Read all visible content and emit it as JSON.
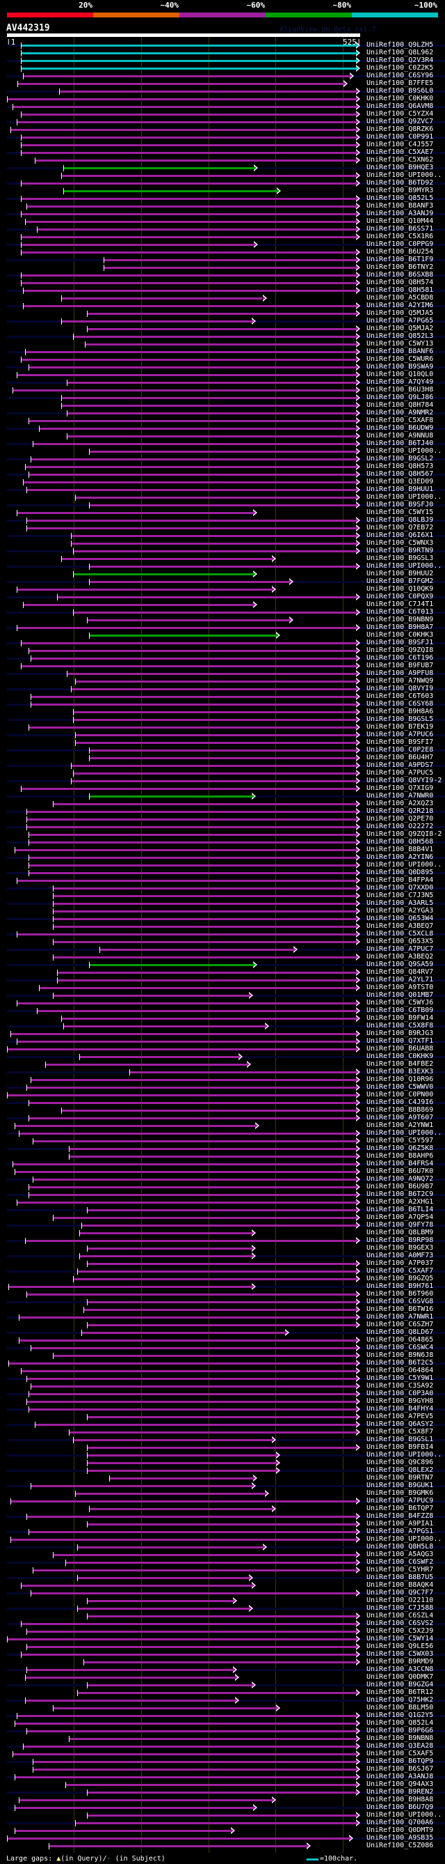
{
  "legend": {
    "labels": [
      "20%",
      "~40%",
      "~60%",
      "~80%",
      "~100%"
    ],
    "colors": [
      "#f0001c",
      "#e06000",
      "#a020a0",
      "#00a000",
      "#00c0c0"
    ]
  },
  "header": {
    "query_name": "AV442319",
    "version": "AlignView.pm Beta rel.7",
    "scale_start": "|1",
    "scale_end": "525|"
  },
  "query_length": 525,
  "color_codes": {
    "c": "#00c0c0",
    "g": "#00a000",
    "m": "#a020a0"
  },
  "hits": [
    [
      "UniRef100_Q9LZH5",
      22,
      525,
      "c"
    ],
    [
      "UniRef100_Q8L962",
      22,
      525,
      "c"
    ],
    [
      "UniRef100_Q2V3R4",
      22,
      525,
      "c"
    ],
    [
      "UniRef100_C0Z2K5",
      22,
      525,
      "c"
    ],
    [
      "UniRef100_C6SY96",
      25,
      516,
      "m"
    ],
    [
      "UniRef100_B7FFE5",
      16,
      506,
      "m"
    ],
    [
      "UniRef100_B9S6L0",
      78,
      525,
      "m"
    ],
    [
      "UniRef100_C0KHK0",
      1,
      525,
      "m"
    ],
    [
      "UniRef100_Q6AVM8",
      9,
      525,
      "m"
    ],
    [
      "UniRef100_C5YZX4",
      22,
      525,
      "m"
    ],
    [
      "UniRef100_Q9ZVC7",
      15,
      525,
      "m"
    ],
    [
      "UniRef100_Q8RZK6",
      6,
      525,
      "m"
    ],
    [
      "UniRef100_C0P991",
      22,
      525,
      "m"
    ],
    [
      "UniRef100_C4J557",
      22,
      525,
      "m"
    ],
    [
      "UniRef100_C5XAE7",
      22,
      525,
      "m"
    ],
    [
      "UniRef100_C5XN62",
      42,
      525,
      "m"
    ],
    [
      "UniRef100_B9HQE3",
      85,
      373,
      "g"
    ],
    [
      "UniRef100_UPI000..",
      82,
      525,
      "m"
    ],
    [
      "UniRef100_B6TD92",
      22,
      525,
      "m"
    ],
    [
      "UniRef100_B9MYR3",
      85,
      407,
      "g"
    ],
    [
      "UniRef100_Q852L5",
      22,
      525,
      "m"
    ],
    [
      "UniRef100_B8ANF3",
      30,
      525,
      "m"
    ],
    [
      "UniRef100_A3ANJ9",
      22,
      525,
      "m"
    ],
    [
      "UniRef100_Q10M44",
      28,
      525,
      "m"
    ],
    [
      "UniRef100_B6SS71",
      45,
      525,
      "m"
    ],
    [
      "UniRef100_C5X1R6",
      22,
      525,
      "m"
    ],
    [
      "UniRef100_C0PPG9",
      22,
      373,
      "m"
    ],
    [
      "UniRef100_B6U254",
      22,
      525,
      "m"
    ],
    [
      "UniRef100_B6T1F9",
      145,
      525,
      "m"
    ],
    [
      "UniRef100_B6TNY2",
      145,
      525,
      "m"
    ],
    [
      "UniRef100_B6SXB8",
      22,
      525,
      "m"
    ],
    [
      "UniRef100_Q8H574",
      22,
      525,
      "m"
    ],
    [
      "UniRef100_Q8H581",
      25,
      525,
      "m"
    ],
    [
      "UniRef100_A5CBD8",
      82,
      386,
      "m"
    ],
    [
      "UniRef100_A2YIM6",
      25,
      525,
      "m"
    ],
    [
      "UniRef100_Q5MJA5",
      120,
      525,
      "m"
    ],
    [
      "UniRef100_A7PG65",
      82,
      370,
      "m"
    ],
    [
      "UniRef100_Q5MJA2",
      120,
      525,
      "m"
    ],
    [
      "UniRef100_Q852L3",
      99,
      525,
      "m"
    ],
    [
      "UniRef100_C5WY13",
      117,
      525,
      "m"
    ],
    [
      "UniRef100_B8ANF6",
      28,
      525,
      "m"
    ],
    [
      "UniRef100_C5WUR6",
      22,
      525,
      "m"
    ],
    [
      "UniRef100_B9SWA9",
      33,
      525,
      "m"
    ],
    [
      "UniRef100_Q10QL0",
      15,
      525,
      "m"
    ],
    [
      "UniRef100_A7QY49",
      90,
      525,
      "m"
    ],
    [
      "UniRef100_B6U3H8",
      9,
      525,
      "m"
    ],
    [
      "UniRef100_Q9LJ86",
      82,
      525,
      "m"
    ],
    [
      "UniRef100_Q8H784",
      82,
      525,
      "m"
    ],
    [
      "UniRef100_A9NMR2",
      90,
      525,
      "m"
    ],
    [
      "UniRef100_C5XAF8",
      33,
      525,
      "m"
    ],
    [
      "UniRef100_B6UDW9",
      49,
      525,
      "m"
    ],
    [
      "UniRef100_A9NNU8",
      90,
      525,
      "m"
    ],
    [
      "UniRef100_B6TJ40",
      39,
      525,
      "m"
    ],
    [
      "UniRef100_UPI000..",
      123,
      525,
      "m"
    ],
    [
      "UniRef100_B9GSL2",
      36,
      525,
      "m"
    ],
    [
      "UniRef100_Q8H573",
      28,
      525,
      "m"
    ],
    [
      "UniRef100_Q8H567",
      33,
      525,
      "m"
    ],
    [
      "UniRef100_Q3ED09",
      25,
      525,
      "m"
    ],
    [
      "UniRef100_B9HUU1",
      30,
      525,
      "m"
    ],
    [
      "UniRef100_UPI000..",
      102,
      525,
      "m"
    ],
    [
      "UniRef100_B9SFJ0",
      123,
      525,
      "m"
    ],
    [
      "UniRef100_C5WY15",
      15,
      372,
      "m"
    ],
    [
      "UniRef100_Q8LBJ9",
      30,
      525,
      "m"
    ],
    [
      "UniRef100_Q7EB72",
      30,
      525,
      "m"
    ],
    [
      "UniRef100_Q6I6X1",
      96,
      525,
      "m"
    ],
    [
      "UniRef100_C5WNX3",
      96,
      525,
      "m"
    ],
    [
      "UniRef100_B9RTN9",
      99,
      525,
      "m"
    ],
    [
      "UniRef100_B9GSL3",
      82,
      400,
      "m"
    ],
    [
      "UniRef100_UPI000..",
      123,
      525,
      "m"
    ],
    [
      "UniRef100_B9HUU2",
      99,
      372,
      "g"
    ],
    [
      "UniRef100_B7FGM2",
      123,
      426,
      "m"
    ],
    [
      "UniRef100_Q10QK9",
      15,
      400,
      "m"
    ],
    [
      "UniRef100_C0PQX9",
      75,
      525,
      "m"
    ],
    [
      "UniRef100_C7J4T1",
      25,
      372,
      "m"
    ],
    [
      "UniRef100_C6T013",
      99,
      525,
      "m"
    ],
    [
      "UniRef100_B9NBN9",
      120,
      426,
      "m"
    ],
    [
      "UniRef100_B9H8A7",
      15,
      525,
      "m"
    ],
    [
      "UniRef100_C0KHK3",
      123,
      406,
      "g"
    ],
    [
      "UniRef100_B9SFJ1",
      22,
      525,
      "m"
    ],
    [
      "UniRef100_Q9ZQI8",
      33,
      525,
      "m"
    ],
    [
      "UniRef100_C6T196",
      36,
      525,
      "m"
    ],
    [
      "UniRef100_B9FUB7",
      22,
      525,
      "m"
    ],
    [
      "UniRef100_A9PFU8",
      90,
      525,
      "m"
    ],
    [
      "UniRef100_A7NWQ9",
      102,
      525,
      "m"
    ],
    [
      "UniRef100_Q8VYI9",
      96,
      525,
      "m"
    ],
    [
      "UniRef100_C6T603",
      36,
      525,
      "m"
    ],
    [
      "UniRef100_C6SY68",
      36,
      525,
      "m"
    ],
    [
      "UniRef100_B9H8A6",
      99,
      525,
      "m"
    ],
    [
      "UniRef100_B9GSL5",
      99,
      525,
      "m"
    ],
    [
      "UniRef100_B7EK19",
      33,
      525,
      "m"
    ],
    [
      "UniRef100_A7PUC6",
      102,
      525,
      "m"
    ],
    [
      "UniRef100_B9SFI7",
      102,
      525,
      "m"
    ],
    [
      "UniRef100_C0P2E8",
      123,
      525,
      "m"
    ],
    [
      "UniRef100_B6U4H7",
      123,
      525,
      "m"
    ],
    [
      "UniRef100_A9PDS7",
      96,
      525,
      "m"
    ],
    [
      "UniRef100_A7PUC5",
      99,
      525,
      "m"
    ],
    [
      "UniRef100_Q8VYI9-2",
      96,
      525,
      "m"
    ],
    [
      "UniRef100_Q7XIG9",
      22,
      525,
      "m"
    ],
    [
      "UniRef100_A7NWR0",
      123,
      370,
      "g"
    ],
    [
      "UniRef100_A2XQZ3",
      69,
      525,
      "m"
    ],
    [
      "UniRef100_Q2R218",
      30,
      525,
      "m"
    ],
    [
      "UniRef100_Q2PE70",
      30,
      525,
      "m"
    ],
    [
      "UniRef100_O22272",
      30,
      525,
      "m"
    ],
    [
      "UniRef100_Q9ZQI8-2",
      33,
      525,
      "m"
    ],
    [
      "UniRef100_Q8H568",
      33,
      525,
      "m"
    ],
    [
      "UniRef100_B8B4V1",
      12,
      525,
      "m"
    ],
    [
      "UniRef100_A2YIN6",
      33,
      525,
      "m"
    ],
    [
      "UniRef100_UPI000..",
      33,
      525,
      "m"
    ],
    [
      "UniRef100_Q0D895",
      33,
      525,
      "m"
    ],
    [
      "UniRef100_B4FPA4",
      15,
      525,
      "m"
    ],
    [
      "UniRef100_Q7XXD0",
      69,
      525,
      "m"
    ],
    [
      "UniRef100_C7J3N5",
      69,
      525,
      "m"
    ],
    [
      "UniRef100_A3ARL5",
      69,
      525,
      "m"
    ],
    [
      "UniRef100_A2YGA3",
      69,
      525,
      "m"
    ],
    [
      "UniRef100_Q653W4",
      69,
      525,
      "m"
    ],
    [
      "UniRef100_A3BEQ7",
      69,
      525,
      "m"
    ],
    [
      "UniRef100_C5XCL8",
      15,
      525,
      "m"
    ],
    [
      "UniRef100_Q653X5",
      69,
      525,
      "m"
    ],
    [
      "UniRef100_A7PUC7",
      138,
      432,
      "m"
    ],
    [
      "UniRef100_A3BEQ2",
      69,
      525,
      "m"
    ],
    [
      "UniRef100_Q9SA59",
      123,
      372,
      "g"
    ],
    [
      "UniRef100_Q84RV7",
      75,
      525,
      "m"
    ],
    [
      "UniRef100_A2YL71",
      75,
      525,
      "m"
    ],
    [
      "UniRef100_A9TST0",
      49,
      525,
      "m"
    ],
    [
      "UniRef100_Q01MB7",
      69,
      366,
      "m"
    ],
    [
      "UniRef100_C5WYJ6",
      15,
      525,
      "m"
    ],
    [
      "UniRef100_C6TB09",
      45,
      525,
      "m"
    ],
    [
      "UniRef100_B9FW14",
      82,
      525,
      "m"
    ],
    [
      "UniRef100_C5X8F8",
      85,
      390,
      "m"
    ],
    [
      "UniRef100_B9RJG3",
      6,
      525,
      "m"
    ],
    [
      "UniRef100_Q7XTF1",
      15,
      525,
      "m"
    ],
    [
      "UniRef100_B6UAB8",
      1,
      525,
      "m"
    ],
    [
      "UniRef100_C0KHK9",
      108,
      350,
      "m"
    ],
    [
      "UniRef100_B4FBE2",
      58,
      363,
      "m"
    ],
    [
      "UniRef100_B3EXK3",
      183,
      525,
      "m"
    ],
    [
      "UniRef100_Q10R96",
      36,
      525,
      "m"
    ],
    [
      "UniRef100_C5WWV0",
      30,
      525,
      "m"
    ],
    [
      "UniRef100_C0PN00",
      1,
      525,
      "m"
    ],
    [
      "UniRef100_C4J9I6",
      33,
      525,
      "m"
    ],
    [
      "UniRef100_B8B869",
      82,
      525,
      "m"
    ],
    [
      "UniRef100_A9T607",
      33,
      525,
      "m"
    ],
    [
      "UniRef100_A2YNW1",
      12,
      375,
      "m"
    ],
    [
      "UniRef100_UPI000..",
      19,
      525,
      "m"
    ],
    [
      "UniRef100_C5Y597",
      39,
      525,
      "m"
    ],
    [
      "UniRef100_Q6Z5K8",
      93,
      525,
      "m"
    ],
    [
      "UniRef100_B8AHP6",
      93,
      525,
      "m"
    ],
    [
      "UniRef100_B4FRS4",
      9,
      525,
      "m"
    ],
    [
      "UniRef100_B6U7K0",
      12,
      525,
      "m"
    ],
    [
      "UniRef100_A9NQ72",
      39,
      525,
      "m"
    ],
    [
      "UniRef100_B6U9B7",
      33,
      525,
      "m"
    ],
    [
      "UniRef100_B6T2C9",
      33,
      525,
      "m"
    ],
    [
      "UniRef100_A2XHG1",
      15,
      525,
      "m"
    ],
    [
      "UniRef100_B6TLI4",
      120,
      525,
      "m"
    ],
    [
      "UniRef100_A7QP54",
      69,
      525,
      "m"
    ],
    [
      "UniRef100_Q9FY78",
      112,
      525,
      "m"
    ],
    [
      "UniRef100_Q8LBM9",
      108,
      370,
      "m"
    ],
    [
      "UniRef100_B9RP98",
      28,
      525,
      "m"
    ],
    [
      "UniRef100_B9GEX3",
      120,
      370,
      "m"
    ],
    [
      "UniRef100_A0MF73",
      108,
      370,
      "m"
    ],
    [
      "UniRef100_A7P037",
      120,
      525,
      "m"
    ],
    [
      "UniRef100_C5XAF7",
      105,
      525,
      "m"
    ],
    [
      "UniRef100_B9GZQ5",
      99,
      525,
      "m"
    ],
    [
      "UniRef100_B9H761",
      3,
      370,
      "m"
    ],
    [
      "UniRef100_B6T960",
      30,
      525,
      "m"
    ],
    [
      "UniRef100_C6SVG8",
      120,
      525,
      "m"
    ],
    [
      "UniRef100_B6TW16",
      115,
      525,
      "m"
    ],
    [
      "UniRef100_A7NWR1",
      19,
      525,
      "m"
    ],
    [
      "UniRef100_C6SZH7",
      120,
      525,
      "m"
    ],
    [
      "UniRef100_Q8LD67",
      112,
      420,
      "m"
    ],
    [
      "UniRef100_O64865",
      19,
      525,
      "m"
    ],
    [
      "UniRef100_C6SWC4",
      36,
      525,
      "m"
    ],
    [
      "UniRef100_B9N6J8",
      69,
      525,
      "m"
    ],
    [
      "UniRef100_B6T2C5",
      3,
      525,
      "m"
    ],
    [
      "UniRef100_O64864",
      22,
      525,
      "m"
    ],
    [
      "UniRef100_C5Y9W1",
      30,
      525,
      "m"
    ],
    [
      "UniRef100_C3SA92",
      36,
      525,
      "m"
    ],
    [
      "UniRef100_C0P3A0",
      33,
      525,
      "m"
    ],
    [
      "UniRef100_B9GYH8",
      30,
      525,
      "m"
    ],
    [
      "UniRef100_B4FHY4",
      33,
      525,
      "m"
    ],
    [
      "UniRef100_A7PEV5",
      120,
      525,
      "m"
    ],
    [
      "UniRef100_Q6ASY2",
      42,
      525,
      "m"
    ],
    [
      "UniRef100_C5X8F7",
      93,
      525,
      "m"
    ],
    [
      "UniRef100_B9GSL1",
      99,
      400,
      "m"
    ],
    [
      "UniRef100_B9FBI4",
      120,
      525,
      "m"
    ],
    [
      "UniRef100_UPI000..",
      120,
      406,
      "m"
    ],
    [
      "UniRef100_Q9C896",
      120,
      406,
      "m"
    ],
    [
      "UniRef100_Q8LEX2",
      120,
      406,
      "m"
    ],
    [
      "UniRef100_B9RTN7",
      153,
      372,
      "m"
    ],
    [
      "UniRef100_B9GUK1",
      36,
      370,
      "m"
    ],
    [
      "UniRef100_B9GMK6",
      102,
      390,
      "m"
    ],
    [
      "UniRef100_A7PUC9",
      6,
      525,
      "m"
    ],
    [
      "UniRef100_B6TQP7",
      123,
      400,
      "m"
    ],
    [
      "UniRef100_B4FZZ8",
      30,
      525,
      "m"
    ],
    [
      "UniRef100_A9PIA1",
      120,
      525,
      "m"
    ],
    [
      "UniRef100_A7PGS1",
      33,
      525,
      "m"
    ],
    [
      "UniRef100_UPI000..",
      6,
      525,
      "m"
    ],
    [
      "UniRef100_Q8H5L8",
      105,
      386,
      "m"
    ],
    [
      "UniRef100_A5AQG3",
      69,
      525,
      "m"
    ],
    [
      "UniRef100_C6SWF2",
      88,
      525,
      "m"
    ],
    [
      "UniRef100_C5YHR7",
      39,
      525,
      "m"
    ],
    [
      "UniRef100_B8B7U5",
      105,
      366,
      "m"
    ],
    [
      "UniRef100_B8AQK4",
      22,
      370,
      "m"
    ],
    [
      "UniRef100_Q9C7F7",
      36,
      525,
      "m"
    ],
    [
      "UniRef100_O22110",
      120,
      342,
      "m"
    ],
    [
      "UniRef100_C7J588",
      105,
      366,
      "m"
    ],
    [
      "UniRef100_C6SZL4",
      120,
      525,
      "m"
    ],
    [
      "UniRef100_C6SVS2",
      22,
      525,
      "m"
    ],
    [
      "UniRef100_C5X2J9",
      30,
      525,
      "m"
    ],
    [
      "UniRef100_C5WY14",
      1,
      525,
      "m"
    ],
    [
      "UniRef100_Q9LE56",
      30,
      525,
      "m"
    ],
    [
      "UniRef100_C5WX03",
      22,
      525,
      "m"
    ],
    [
      "UniRef100_B9RMD9",
      115,
      525,
      "m"
    ],
    [
      "UniRef100_A3CCN8",
      30,
      342,
      "m"
    ],
    [
      "UniRef100_Q0DMK7",
      28,
      345,
      "m"
    ],
    [
      "UniRef100_B9GZG4",
      120,
      370,
      "m"
    ],
    [
      "UniRef100_B6TR12",
      105,
      525,
      "m"
    ],
    [
      "UniRef100_Q75HK2",
      28,
      345,
      "m"
    ],
    [
      "UniRef100_B8LM50",
      69,
      406,
      "m"
    ],
    [
      "UniRef100_Q1G2Y5",
      15,
      525,
      "m"
    ],
    [
      "UniRef100_Q852L4",
      12,
      525,
      "m"
    ],
    [
      "UniRef100_B9P6G6",
      30,
      525,
      "m"
    ],
    [
      "UniRef100_B9NBN8",
      93,
      525,
      "m"
    ],
    [
      "UniRef100_Q3EA28",
      25,
      525,
      "m"
    ],
    [
      "UniRef100_C5XAF5",
      9,
      525,
      "m"
    ],
    [
      "UniRef100_B6TQP9",
      39,
      525,
      "m"
    ],
    [
      "UniRef100_B6SJ67",
      39,
      525,
      "m"
    ],
    [
      "UniRef100_A3ANJ8",
      12,
      525,
      "m"
    ],
    [
      "UniRef100_Q94AX3",
      88,
      525,
      "m"
    ],
    [
      "UniRef100_B9REN2",
      120,
      525,
      "m"
    ],
    [
      "UniRef100_B9H8A8",
      19,
      400,
      "m"
    ],
    [
      "UniRef100_B6U7Q9",
      12,
      372,
      "m"
    ],
    [
      "UniRef100_UPI000..",
      120,
      525,
      "m"
    ],
    [
      "UniRef100_Q700A6",
      102,
      525,
      "m"
    ],
    [
      "UniRef100_Q0DMT9",
      12,
      339,
      "m"
    ],
    [
      "UniRef100_A9SB35",
      1,
      515,
      "m"
    ],
    [
      "UniRef100_C5Z086",
      63,
      452,
      "m"
    ]
  ],
  "footer": {
    "gaps_label": "Large gaps: ",
    "query_marker": "▲",
    "query_text": "(in Query)/",
    "subject_marker": "-",
    "subject_text": " (in Subject)",
    "scale_text": "=100char."
  }
}
